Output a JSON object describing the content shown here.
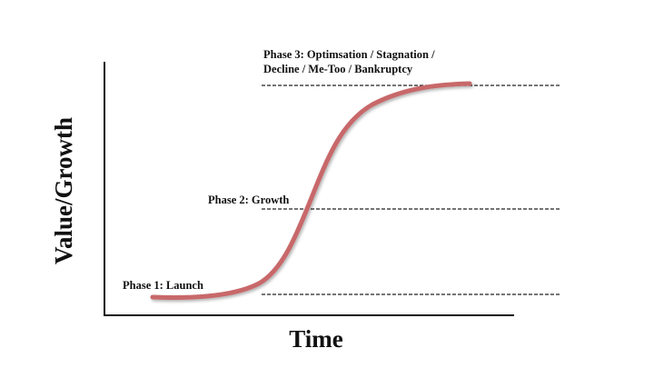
{
  "axes": {
    "y_label": "Value/Growth",
    "x_label": "Time"
  },
  "phases": [
    {
      "lines": [
        "Phase 1: Launch"
      ]
    },
    {
      "lines": [
        "Phase 2: Growth"
      ]
    },
    {
      "lines": [
        "Phase 3: Optimsation / Stagnation /",
        "Decline / Me-Too / Bankruptcy"
      ]
    }
  ]
}
